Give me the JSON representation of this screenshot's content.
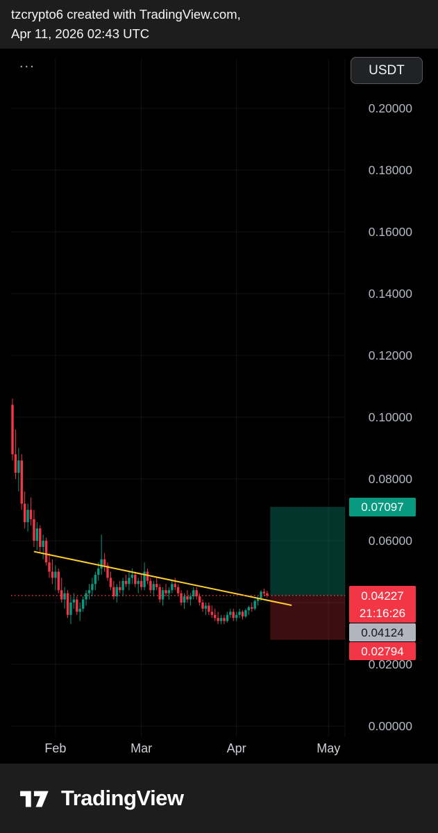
{
  "header": {
    "line1": "tzcrypto6 created with TradingView.com,",
    "line2": "Apr 11, 2026 02:43 UTC"
  },
  "toolbar": {
    "legend_ellipsis": "...",
    "symbol_button": "USDT"
  },
  "footer": {
    "brand": "TradingView"
  },
  "chart_data": {
    "type": "candlestick",
    "title": "",
    "y_axis": {
      "min": 0,
      "max": 0.2,
      "step": 0.02,
      "decimals": 5
    },
    "x_axis": {
      "month_ticks": [
        {
          "label": "Feb",
          "day": 14
        },
        {
          "label": "Mar",
          "day": 42
        },
        {
          "label": "Apr",
          "day": 73
        },
        {
          "label": "May",
          "day": 103
        }
      ]
    },
    "candles": [
      [
        0.104,
        0.106,
        0.086,
        0.088
      ],
      [
        0.088,
        0.096,
        0.08,
        0.082
      ],
      [
        0.082,
        0.09,
        0.076,
        0.086
      ],
      [
        0.086,
        0.088,
        0.07,
        0.072
      ],
      [
        0.072,
        0.076,
        0.064,
        0.066
      ],
      [
        0.066,
        0.072,
        0.063,
        0.07
      ],
      [
        0.07,
        0.074,
        0.065,
        0.067
      ],
      [
        0.067,
        0.07,
        0.058,
        0.06
      ],
      [
        0.06,
        0.066,
        0.057,
        0.064
      ],
      [
        0.064,
        0.065,
        0.056,
        0.058
      ],
      [
        0.058,
        0.062,
        0.054,
        0.06
      ],
      [
        0.06,
        0.061,
        0.052,
        0.053
      ],
      [
        0.053,
        0.056,
        0.048,
        0.05
      ],
      [
        0.05,
        0.054,
        0.046,
        0.048
      ],
      [
        0.048,
        0.052,
        0.044,
        0.05
      ],
      [
        0.05,
        0.051,
        0.043,
        0.044
      ],
      [
        0.044,
        0.048,
        0.04,
        0.041
      ],
      [
        0.041,
        0.045,
        0.038,
        0.043
      ],
      [
        0.043,
        0.044,
        0.035,
        0.036
      ],
      [
        0.036,
        0.042,
        0.033,
        0.04
      ],
      [
        0.04,
        0.043,
        0.038,
        0.041
      ],
      [
        0.041,
        0.042,
        0.036,
        0.037
      ],
      [
        0.037,
        0.04,
        0.034,
        0.038
      ],
      [
        0.038,
        0.042,
        0.037,
        0.041
      ],
      [
        0.041,
        0.044,
        0.039,
        0.043
      ],
      [
        0.043,
        0.046,
        0.041,
        0.044
      ],
      [
        0.044,
        0.048,
        0.042,
        0.046
      ],
      [
        0.046,
        0.05,
        0.044,
        0.049
      ],
      [
        0.049,
        0.053,
        0.047,
        0.051
      ],
      [
        0.051,
        0.062,
        0.049,
        0.054
      ],
      [
        0.054,
        0.056,
        0.05,
        0.052
      ],
      [
        0.052,
        0.053,
        0.047,
        0.048
      ],
      [
        0.048,
        0.05,
        0.044,
        0.045
      ],
      [
        0.045,
        0.047,
        0.041,
        0.042
      ],
      [
        0.042,
        0.046,
        0.04,
        0.045
      ],
      [
        0.045,
        0.047,
        0.043,
        0.044
      ],
      [
        0.044,
        0.048,
        0.042,
        0.047
      ],
      [
        0.047,
        0.049,
        0.045,
        0.046
      ],
      [
        0.046,
        0.05,
        0.044,
        0.048
      ],
      [
        0.048,
        0.051,
        0.046,
        0.049
      ],
      [
        0.049,
        0.05,
        0.045,
        0.046
      ],
      [
        0.046,
        0.048,
        0.043,
        0.047
      ],
      [
        0.047,
        0.049,
        0.044,
        0.045
      ],
      [
        0.045,
        0.053,
        0.044,
        0.05
      ],
      [
        0.05,
        0.051,
        0.046,
        0.047
      ],
      [
        0.047,
        0.048,
        0.043,
        0.044
      ],
      [
        0.044,
        0.047,
        0.042,
        0.046
      ],
      [
        0.046,
        0.048,
        0.044,
        0.045
      ],
      [
        0.045,
        0.046,
        0.04,
        0.041
      ],
      [
        0.041,
        0.045,
        0.039,
        0.044
      ],
      [
        0.044,
        0.046,
        0.042,
        0.043
      ],
      [
        0.043,
        0.045,
        0.041,
        0.044
      ],
      [
        0.044,
        0.047,
        0.043,
        0.046
      ],
      [
        0.046,
        0.048,
        0.044,
        0.045
      ],
      [
        0.045,
        0.046,
        0.042,
        0.043
      ],
      [
        0.043,
        0.044,
        0.039,
        0.04
      ],
      [
        0.04,
        0.043,
        0.038,
        0.042
      ],
      [
        0.042,
        0.044,
        0.04,
        0.041
      ],
      [
        0.041,
        0.043,
        0.039,
        0.042
      ],
      [
        0.042,
        0.045,
        0.041,
        0.044
      ],
      [
        0.044,
        0.045,
        0.041,
        0.042
      ],
      [
        0.042,
        0.043,
        0.039,
        0.04
      ],
      [
        0.04,
        0.041,
        0.037,
        0.038
      ],
      [
        0.038,
        0.04,
        0.036,
        0.039
      ],
      [
        0.039,
        0.04,
        0.036,
        0.037
      ],
      [
        0.037,
        0.039,
        0.035,
        0.036
      ],
      [
        0.036,
        0.038,
        0.034,
        0.035
      ],
      [
        0.035,
        0.037,
        0.033,
        0.034
      ],
      [
        0.034,
        0.036,
        0.033,
        0.035
      ],
      [
        0.035,
        0.036,
        0.033,
        0.034
      ],
      [
        0.034,
        0.037,
        0.0335,
        0.036
      ],
      [
        0.036,
        0.038,
        0.035,
        0.037
      ],
      [
        0.037,
        0.038,
        0.034,
        0.035
      ],
      [
        0.035,
        0.037,
        0.034,
        0.036
      ],
      [
        0.036,
        0.038,
        0.035,
        0.037
      ],
      [
        0.037,
        0.0375,
        0.0345,
        0.0355
      ],
      [
        0.0355,
        0.038,
        0.035,
        0.0375
      ],
      [
        0.0375,
        0.039,
        0.036,
        0.0385
      ],
      [
        0.0385,
        0.04,
        0.037,
        0.038
      ],
      [
        0.038,
        0.041,
        0.0375,
        0.0405
      ],
      [
        0.0405,
        0.042,
        0.039,
        0.0415
      ],
      [
        0.0415,
        0.044,
        0.0405,
        0.0435
      ],
      [
        0.0435,
        0.0445,
        0.042,
        0.043
      ],
      [
        0.043,
        0.0438,
        0.0415,
        0.04227
      ]
    ],
    "overlays": {
      "trendline": {
        "from_day": 7,
        "from_price": 0.0565,
        "to_day": 91,
        "to_price": 0.0391
      },
      "entry_line_price": 0.04227,
      "position": {
        "from_day": 84,
        "to_day": 108.4,
        "entry": 0.04227,
        "target": 0.07097,
        "stop": 0.02794
      }
    },
    "price_tags": [
      {
        "id": "target",
        "text": "0.07097",
        "bg": "#089981",
        "fg": "#ffffff",
        "interactable": true
      },
      {
        "id": "entry",
        "lines": [
          "0.04227",
          "21:16:26"
        ],
        "bg": "#f23645",
        "fg": "#ffffff",
        "interactable": true
      },
      {
        "id": "gray",
        "text": "0.04124",
        "bg": "#b2b5be",
        "fg": "#131722",
        "interactable": false
      },
      {
        "id": "stop",
        "text": "0.02794",
        "bg": "#f23645",
        "fg": "#ffffff",
        "interactable": true
      }
    ],
    "colors": {
      "up": "#089981",
      "down": "#f23645",
      "grid": "rgba(255,255,255,0.07)",
      "axis_text": "#b4b8c1",
      "month_text": "#cdd0d6",
      "trendline": "#ffd02e",
      "target_fill": "rgba(8,153,129,0.35)",
      "stop_fill": "rgba(242,54,69,0.25)",
      "entry_line": "#f23645"
    }
  }
}
